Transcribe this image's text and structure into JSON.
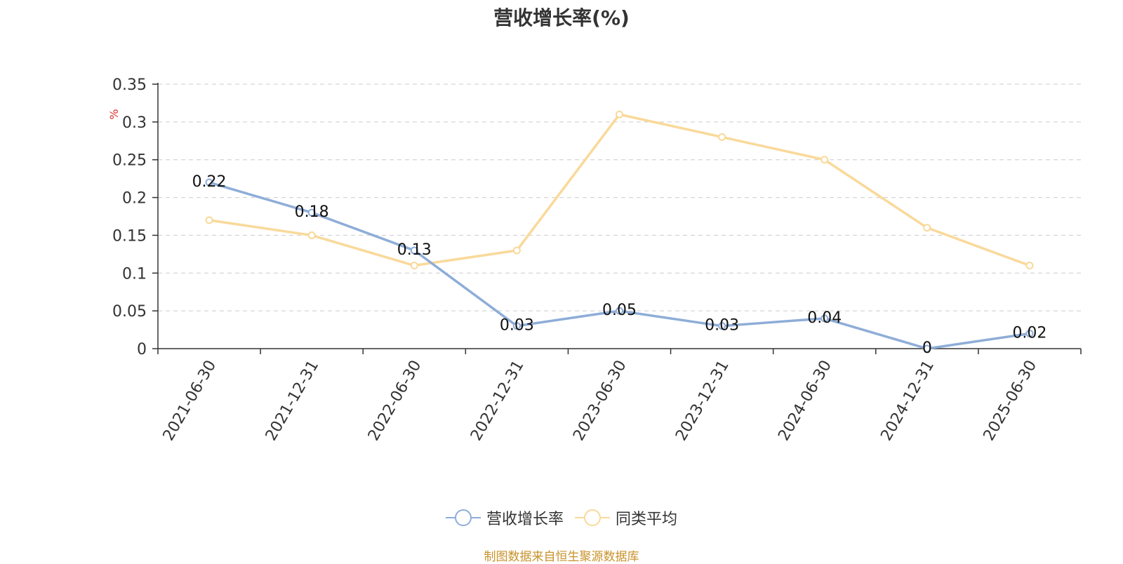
{
  "chart_data": {
    "type": "line",
    "title": "营收增长率(%)",
    "ylabel": "%",
    "xlabel": "",
    "categories": [
      "2021-06-30",
      "2021-12-31",
      "2022-06-30",
      "2022-12-31",
      "2023-06-30",
      "2023-12-31",
      "2024-06-30",
      "2024-12-31",
      "2025-06-30"
    ],
    "series": [
      {
        "name": "营收增长率",
        "color": "#8eadd8",
        "show_labels": true,
        "values": [
          0.22,
          0.18,
          0.13,
          0.03,
          0.05,
          0.03,
          0.04,
          0,
          0.02
        ]
      },
      {
        "name": "同类平均",
        "color": "#f9d99a",
        "show_labels": false,
        "values": [
          0.17,
          0.15,
          0.11,
          0.13,
          0.31,
          0.28,
          0.25,
          0.16,
          0.11
        ]
      }
    ],
    "ylim": [
      0,
      0.35
    ],
    "yticks": [
      "0",
      "0.05",
      "0.1",
      "0.15",
      "0.2",
      "0.25",
      "0.3",
      "0.35"
    ],
    "grid": true,
    "legend_position": "bottom-center"
  },
  "source_text": "制图数据来自恒生聚源数据库",
  "colors": {
    "source": "#c8922a",
    "ylabel": "#e03030",
    "axis": "#333333",
    "grid": "#cccccc"
  }
}
